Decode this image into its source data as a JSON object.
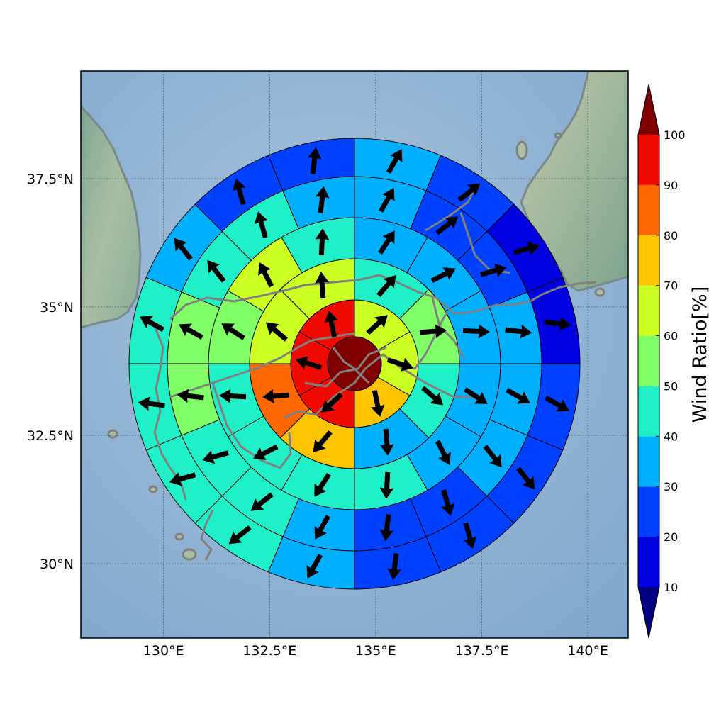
{
  "chart_data": {
    "type": "polar_sector_map",
    "lon_range": [
      128.05,
      140.95
    ],
    "lat_range": [
      28.55,
      39.6
    ],
    "lon_ticks": [
      130,
      132.5,
      135,
      137.5,
      140
    ],
    "lon_tick_labels": [
      "130°E",
      "132.5°E",
      "135°E",
      "137.5°E",
      "140°E"
    ],
    "lat_ticks": [
      30,
      32.5,
      35,
      37.5
    ],
    "lat_tick_labels": [
      "30°N",
      "32.5°N",
      "35°N",
      "37.5°N"
    ],
    "grid": true,
    "center_value": 100,
    "rings": [
      {
        "sectors": 6,
        "values": [
          66,
          64,
          75,
          92,
          92,
          92
        ]
      },
      {
        "sectors": 8,
        "values": [
          44,
          52,
          48,
          38,
          72,
          82,
          66,
          65
        ]
      },
      {
        "sectors": 12,
        "values": [
          34,
          34,
          37,
          36,
          38,
          42,
          42,
          46,
          42,
          55,
          62,
          42
        ]
      },
      {
        "sectors": 16,
        "values": [
          33,
          25,
          22,
          30,
          36,
          31,
          25,
          25,
          32,
          42,
          48,
          55,
          56,
          46,
          48,
          36
        ]
      },
      {
        "sectors": 16,
        "values": [
          34,
          22,
          18,
          14,
          20,
          28,
          22,
          22,
          32,
          42,
          44,
          42,
          43,
          35,
          22,
          28
        ]
      }
    ],
    "colorbar": {
      "label": "Wind Ratio[%]",
      "ticks": [
        10,
        20,
        30,
        40,
        50,
        60,
        70,
        80,
        90,
        100
      ],
      "tick_labels": [
        "10",
        "20",
        "30",
        "40",
        "50",
        "60",
        "70",
        "80",
        "90",
        "100"
      ],
      "colors": [
        "#0000e0",
        "#0040ff",
        "#00b0ff",
        "#20f0c8",
        "#80ff66",
        "#ccff22",
        "#ffc400",
        "#ff6800",
        "#f00a00"
      ],
      "under_color": "#000080",
      "over_color": "#800000",
      "extend": "both"
    }
  }
}
